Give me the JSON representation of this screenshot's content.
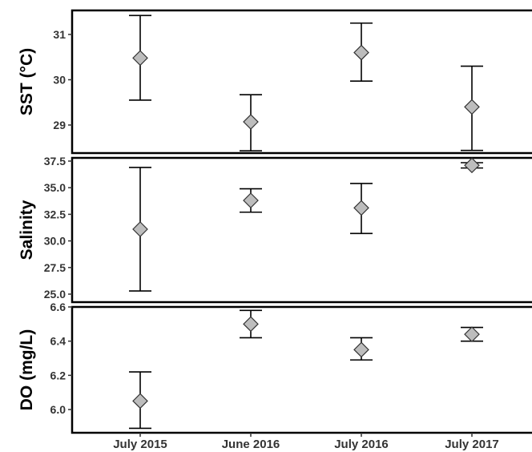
{
  "chart_data": {
    "type": "scatter",
    "subtype": "point-with-error-bars",
    "categories": [
      "July 2015",
      "June 2016",
      "July 2016",
      "July 2017"
    ],
    "marker": {
      "shape": "diamond",
      "fill": "#bdbdbd",
      "stroke": "#333333"
    },
    "errorbar_color": "#000000",
    "grid": false,
    "panels": [
      {
        "id": "sst",
        "ylabel": "SST (°C)",
        "ylim": [
          28.35,
          31.5
        ],
        "ticks": [
          29,
          30,
          31
        ],
        "tick_labels": [
          "29",
          "30",
          "31"
        ],
        "points": [
          {
            "category": "July 2015",
            "mean": 30.48,
            "lower": 29.55,
            "upper": 31.42
          },
          {
            "category": "June 2016",
            "mean": 29.07,
            "lower": 28.43,
            "upper": 29.67
          },
          {
            "category": "July 2016",
            "mean": 30.6,
            "lower": 29.97,
            "upper": 31.25
          },
          {
            "category": "July 2017",
            "mean": 29.4,
            "lower": 28.44,
            "upper": 30.3
          }
        ]
      },
      {
        "id": "salinity",
        "ylabel": "Salinity",
        "ylim": [
          24.85,
          37.5
        ],
        "ticks": [
          25.0,
          27.5,
          30.0,
          32.5,
          35.0,
          37.5
        ],
        "tick_labels": [
          "25.0",
          "27.5",
          "30.0",
          "32.5",
          "35.0",
          "37.5"
        ],
        "points": [
          {
            "category": "July 2015",
            "mean": 31.1,
            "lower": 25.3,
            "upper": 36.9
          },
          {
            "category": "June 2016",
            "mean": 33.8,
            "lower": 32.7,
            "upper": 34.9
          },
          {
            "category": "July 2016",
            "mean": 33.1,
            "lower": 30.7,
            "upper": 35.4
          },
          {
            "category": "July 2017",
            "mean": 37.1,
            "lower": 36.85,
            "upper": 37.35
          }
        ]
      },
      {
        "id": "do",
        "ylabel": "DO (mg/L)",
        "ylim": [
          5.87,
          6.6
        ],
        "ticks": [
          6.0,
          6.2,
          6.4,
          6.6
        ],
        "tick_labels": [
          "6.0",
          "6.2",
          "6.4",
          "6.6"
        ],
        "points": [
          {
            "category": "July 2015",
            "mean": 6.05,
            "lower": 5.89,
            "upper": 6.22
          },
          {
            "category": "June 2016",
            "mean": 6.5,
            "lower": 6.42,
            "upper": 6.58
          },
          {
            "category": "July 2016",
            "mean": 6.35,
            "lower": 6.29,
            "upper": 6.42
          },
          {
            "category": "July 2017",
            "mean": 6.44,
            "lower": 6.4,
            "upper": 6.48
          }
        ]
      }
    ]
  }
}
